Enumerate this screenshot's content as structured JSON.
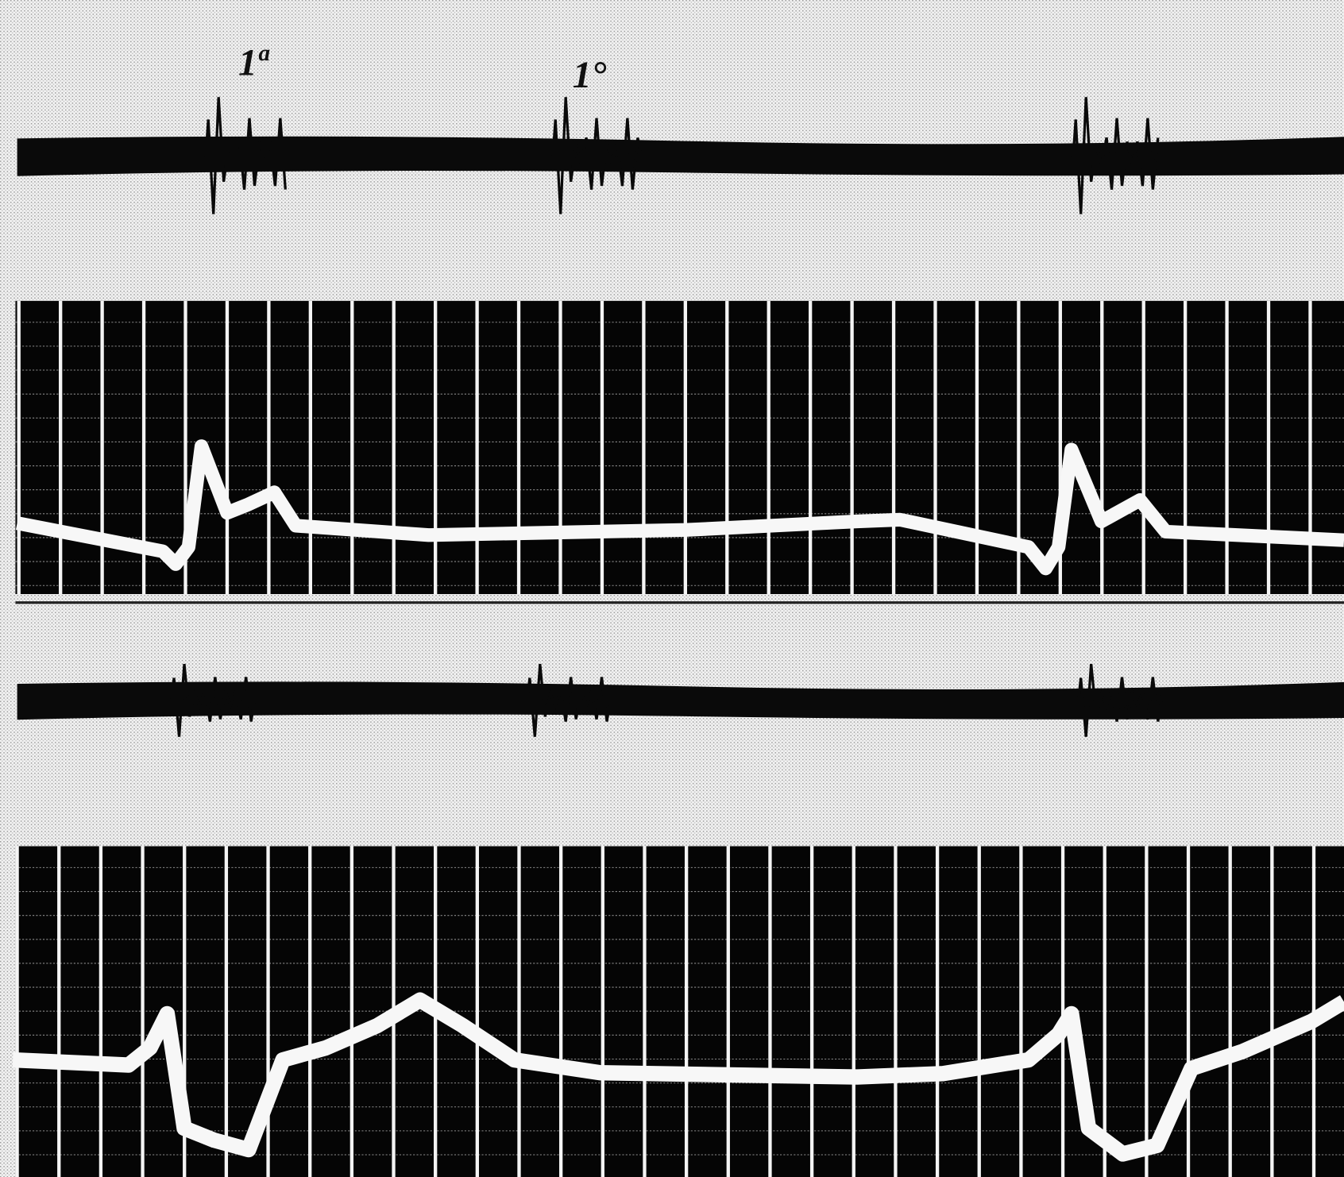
{
  "labels": [
    "1ª",
    "1°"
  ]
}
